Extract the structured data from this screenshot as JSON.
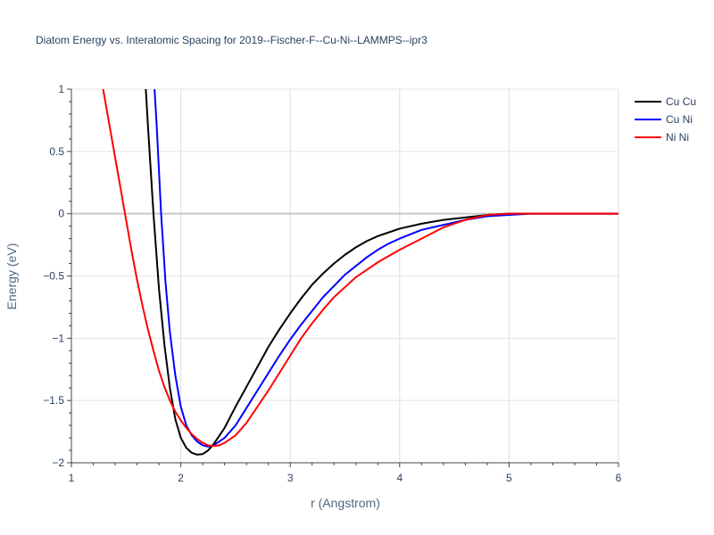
{
  "chart_data": {
    "type": "line",
    "title": "Diatom Energy vs. Interatomic Spacing for 2019--Fischer-F--Cu-Ni--LAMMPS--ipr3",
    "xlabel": "r (Angstrom)",
    "ylabel": "Energy (eV)",
    "xlim": [
      1,
      6
    ],
    "ylim": [
      -2,
      1
    ],
    "x_ticks": [
      1,
      2,
      3,
      4,
      5,
      6
    ],
    "x_tick_labels": [
      "1",
      "2",
      "3",
      "4",
      "5",
      "6"
    ],
    "y_ticks": [
      1,
      0.5,
      0,
      -0.5,
      -1,
      -1.5,
      -2
    ],
    "y_tick_labels": [
      "1",
      "0.5",
      "0",
      "−0.5",
      "−1",
      "−1.5",
      "−2"
    ],
    "grid": true,
    "legend_position": "top-right",
    "series": [
      {
        "name": "Cu Cu",
        "color": "#000000",
        "points": [
          [
            1.68,
            1.0
          ],
          [
            1.7,
            0.7
          ],
          [
            1.75,
            0.0
          ],
          [
            1.8,
            -0.6
          ],
          [
            1.85,
            -1.05
          ],
          [
            1.9,
            -1.4
          ],
          [
            1.95,
            -1.65
          ],
          [
            2.0,
            -1.8
          ],
          [
            2.05,
            -1.88
          ],
          [
            2.1,
            -1.92
          ],
          [
            2.15,
            -1.935
          ],
          [
            2.2,
            -1.93
          ],
          [
            2.25,
            -1.9
          ],
          [
            2.3,
            -1.85
          ],
          [
            2.4,
            -1.72
          ],
          [
            2.5,
            -1.55
          ],
          [
            2.6,
            -1.39
          ],
          [
            2.7,
            -1.23
          ],
          [
            2.8,
            -1.07
          ],
          [
            2.9,
            -0.93
          ],
          [
            3.0,
            -0.8
          ],
          [
            3.1,
            -0.68
          ],
          [
            3.2,
            -0.57
          ],
          [
            3.3,
            -0.48
          ],
          [
            3.4,
            -0.4
          ],
          [
            3.5,
            -0.33
          ],
          [
            3.6,
            -0.27
          ],
          [
            3.7,
            -0.22
          ],
          [
            3.8,
            -0.18
          ],
          [
            3.9,
            -0.15
          ],
          [
            4.0,
            -0.12
          ],
          [
            4.2,
            -0.08
          ],
          [
            4.4,
            -0.05
          ],
          [
            4.6,
            -0.03
          ],
          [
            4.8,
            -0.01
          ],
          [
            5.0,
            0.0
          ],
          [
            5.5,
            0.0
          ],
          [
            6.0,
            0.0
          ]
        ]
      },
      {
        "name": "Cu Ni",
        "color": "#0000ff",
        "points": [
          [
            1.76,
            1.0
          ],
          [
            1.78,
            0.7
          ],
          [
            1.82,
            0.0
          ],
          [
            1.86,
            -0.55
          ],
          [
            1.9,
            -0.95
          ],
          [
            1.95,
            -1.3
          ],
          [
            2.0,
            -1.55
          ],
          [
            2.05,
            -1.7
          ],
          [
            2.1,
            -1.78
          ],
          [
            2.15,
            -1.83
          ],
          [
            2.2,
            -1.86
          ],
          [
            2.25,
            -1.87
          ],
          [
            2.3,
            -1.86
          ],
          [
            2.4,
            -1.8
          ],
          [
            2.5,
            -1.7
          ],
          [
            2.6,
            -1.56
          ],
          [
            2.7,
            -1.42
          ],
          [
            2.8,
            -1.28
          ],
          [
            2.9,
            -1.14
          ],
          [
            3.0,
            -1.01
          ],
          [
            3.1,
            -0.89
          ],
          [
            3.2,
            -0.78
          ],
          [
            3.3,
            -0.67
          ],
          [
            3.4,
            -0.58
          ],
          [
            3.5,
            -0.49
          ],
          [
            3.6,
            -0.42
          ],
          [
            3.7,
            -0.35
          ],
          [
            3.8,
            -0.29
          ],
          [
            3.9,
            -0.24
          ],
          [
            4.0,
            -0.2
          ],
          [
            4.2,
            -0.13
          ],
          [
            4.4,
            -0.09
          ],
          [
            4.6,
            -0.05
          ],
          [
            4.8,
            -0.02
          ],
          [
            5.0,
            -0.01
          ],
          [
            5.2,
            0.0
          ],
          [
            5.5,
            0.0
          ],
          [
            6.0,
            0.0
          ]
        ]
      },
      {
        "name": "Ni Ni",
        "color": "#ff0000",
        "points": [
          [
            1.29,
            1.0
          ],
          [
            1.35,
            0.7
          ],
          [
            1.4,
            0.45
          ],
          [
            1.45,
            0.2
          ],
          [
            1.5,
            -0.05
          ],
          [
            1.55,
            -0.3
          ],
          [
            1.6,
            -0.53
          ],
          [
            1.65,
            -0.74
          ],
          [
            1.7,
            -0.93
          ],
          [
            1.75,
            -1.1
          ],
          [
            1.8,
            -1.26
          ],
          [
            1.85,
            -1.39
          ],
          [
            1.9,
            -1.5
          ],
          [
            1.95,
            -1.59
          ],
          [
            2.0,
            -1.66
          ],
          [
            2.05,
            -1.72
          ],
          [
            2.1,
            -1.77
          ],
          [
            2.15,
            -1.81
          ],
          [
            2.2,
            -1.84
          ],
          [
            2.25,
            -1.86
          ],
          [
            2.3,
            -1.865
          ],
          [
            2.35,
            -1.86
          ],
          [
            2.4,
            -1.84
          ],
          [
            2.5,
            -1.78
          ],
          [
            2.6,
            -1.68
          ],
          [
            2.7,
            -1.55
          ],
          [
            2.8,
            -1.42
          ],
          [
            2.9,
            -1.28
          ],
          [
            3.0,
            -1.14
          ],
          [
            3.1,
            -1.0
          ],
          [
            3.2,
            -0.88
          ],
          [
            3.3,
            -0.77
          ],
          [
            3.4,
            -0.67
          ],
          [
            3.5,
            -0.59
          ],
          [
            3.6,
            -0.51
          ],
          [
            3.7,
            -0.45
          ],
          [
            3.8,
            -0.39
          ],
          [
            3.9,
            -0.34
          ],
          [
            4.0,
            -0.29
          ],
          [
            4.2,
            -0.2
          ],
          [
            4.4,
            -0.11
          ],
          [
            4.6,
            -0.05
          ],
          [
            4.8,
            -0.01
          ],
          [
            5.0,
            0.0
          ],
          [
            5.5,
            0.0
          ],
          [
            6.0,
            0.0
          ]
        ]
      }
    ]
  }
}
